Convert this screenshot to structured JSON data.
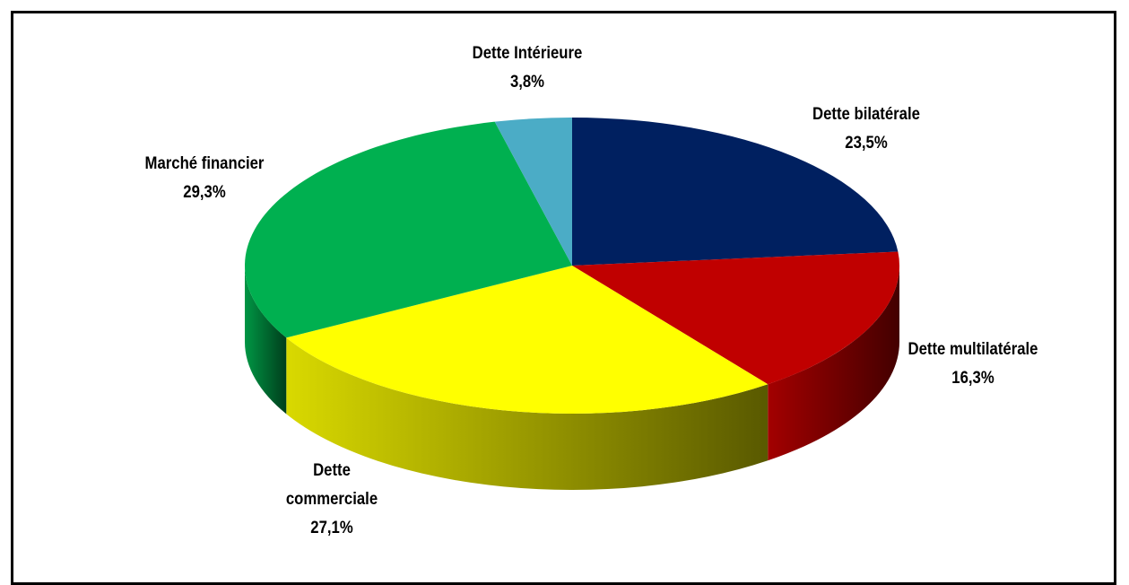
{
  "chart_data": {
    "type": "pie",
    "categories": [
      "Dette bilatérale",
      "Dette multilatérale",
      "Dette commerciale",
      "Marché financier",
      "Dette Intérieure"
    ],
    "values": [
      23.5,
      16.3,
      27.1,
      29.3,
      3.8
    ],
    "value_labels": [
      "23,5%",
      "16,3%",
      "27,1%",
      "29,3%",
      "3,8%"
    ],
    "colors": [
      "#002060",
      "#c00000",
      "#ffff00",
      "#00b050",
      "#4bacc6"
    ]
  }
}
